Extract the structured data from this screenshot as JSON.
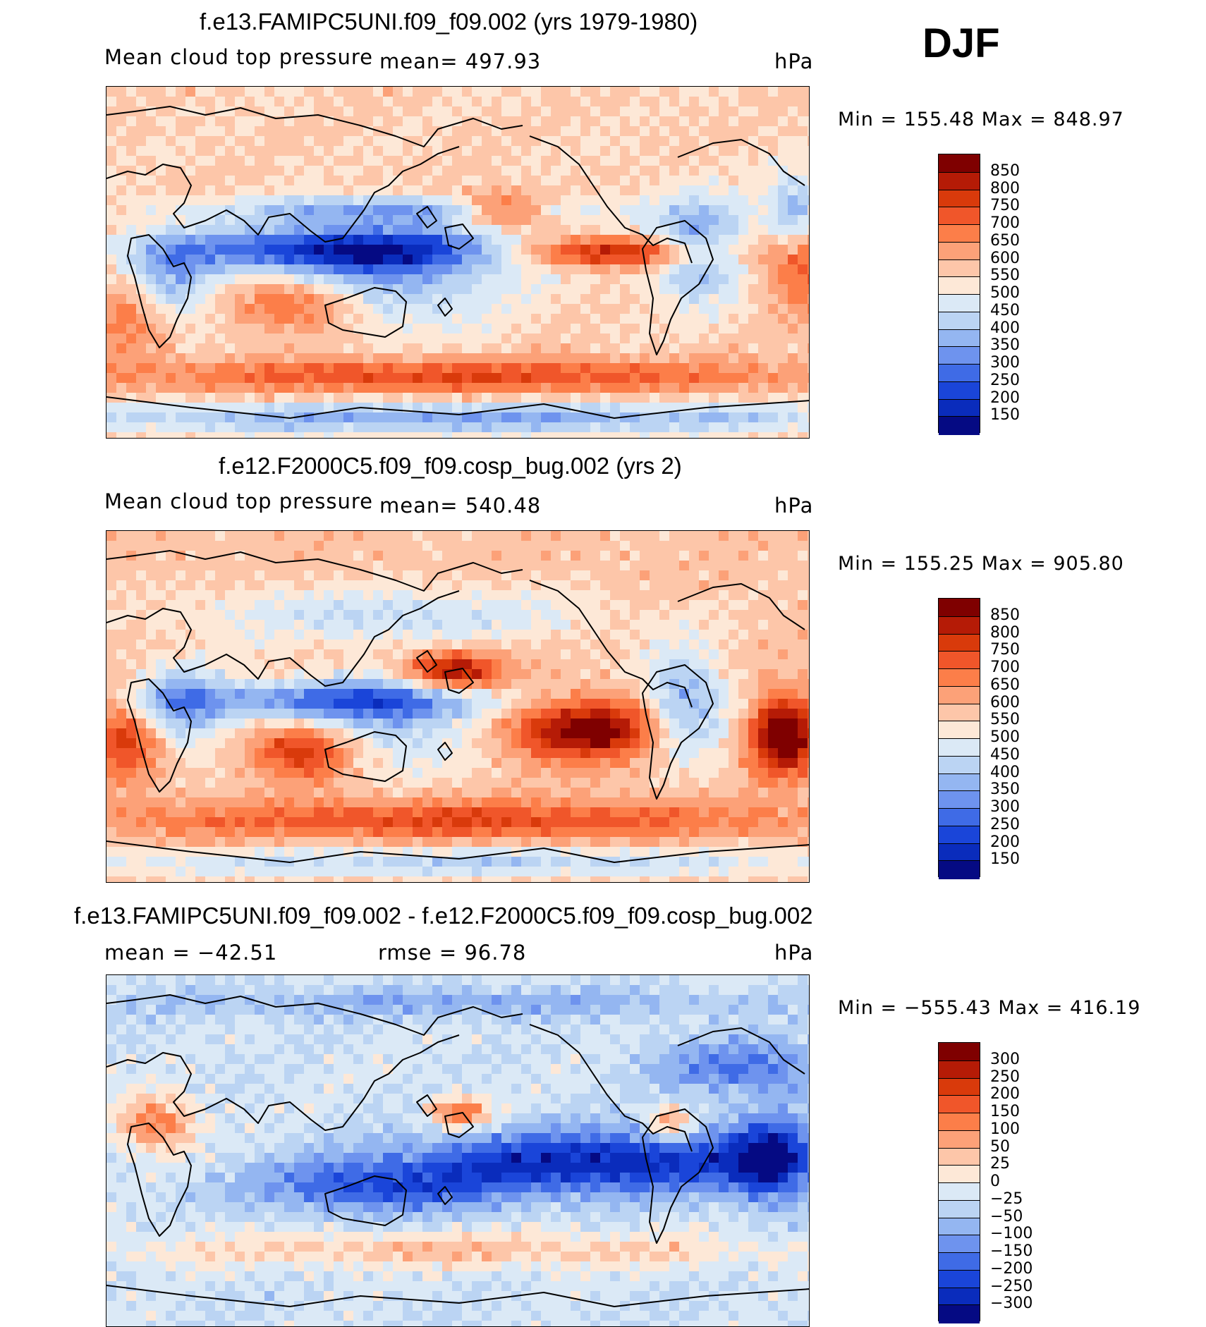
{
  "season_label": "DJF",
  "chart_data": [
    {
      "type": "heatmap",
      "title": "f.e13.FAMIPC5UNI.f09_f09.002 (yrs 1979-1980)",
      "variable": "Mean cloud top pressure",
      "mean_label": "mean=  497.93",
      "units": "hPa",
      "min_max_label": "Min  =  155.48  Max  =  848.97",
      "min": 155.48,
      "max": 848.97,
      "colorbar": {
        "levels": [
          "850",
          "800",
          "750",
          "700",
          "650",
          "600",
          "550",
          "500",
          "450",
          "400",
          "350",
          "300",
          "250",
          "200",
          "150"
        ],
        "colors": [
          "#7f0000",
          "#b51b06",
          "#d93a0b",
          "#f0562a",
          "#fc7e49",
          "#fca178",
          "#fdc6a9",
          "#fde8d7",
          "#dbe9f6",
          "#bbd4f3",
          "#94b6f1",
          "#6e93ee",
          "#3f6be6",
          "#1a45d9",
          "#0a2cbc",
          "#050a83"
        ]
      },
      "pattern": "model"
    },
    {
      "type": "heatmap",
      "title": "f.e12.F2000C5.f09_f09.cosp_bug.002 (yrs 2)",
      "variable": "Mean cloud top pressure",
      "mean_label": "mean=  540.48",
      "units": "hPa",
      "min_max_label": "Min  =  155.25  Max  =  905.80",
      "min": 155.25,
      "max": 905.8,
      "colorbar": {
        "levels": [
          "850",
          "800",
          "750",
          "700",
          "650",
          "600",
          "550",
          "500",
          "450",
          "400",
          "350",
          "300",
          "250",
          "200",
          "150"
        ],
        "colors": [
          "#7f0000",
          "#b51b06",
          "#d93a0b",
          "#f0562a",
          "#fc7e49",
          "#fca178",
          "#fdc6a9",
          "#fde8d7",
          "#dbe9f6",
          "#bbd4f3",
          "#94b6f1",
          "#6e93ee",
          "#3f6be6",
          "#1a45d9",
          "#0a2cbc",
          "#050a83"
        ]
      },
      "pattern": "control"
    },
    {
      "type": "heatmap",
      "title": "f.e13.FAMIPC5UNI.f09_f09.002 - f.e12.F2000C5.f09_f09.cosp_bug.002",
      "mean_label": "mean  =  −42.51",
      "rmse_label": "rmse  =    96.78",
      "units": "hPa",
      "min_max_label": "Min  =  −555.43  Max  =  416.19",
      "min": -555.43,
      "max": 416.19,
      "colorbar": {
        "levels": [
          "300",
          "250",
          "200",
          "150",
          "100",
          "50",
          "25",
          "0",
          "−25",
          "−50",
          "−100",
          "−150",
          "−200",
          "−250",
          "−300"
        ],
        "colors": [
          "#7f0000",
          "#b51b06",
          "#d93a0b",
          "#f0562a",
          "#fc7e49",
          "#fca178",
          "#fdc6a9",
          "#fde8d7",
          "#dbe9f6",
          "#bbd4f3",
          "#94b6f1",
          "#6e93ee",
          "#3f6be6",
          "#1a45d9",
          "#0a2cbc",
          "#050a83"
        ]
      },
      "pattern": "difference"
    }
  ]
}
